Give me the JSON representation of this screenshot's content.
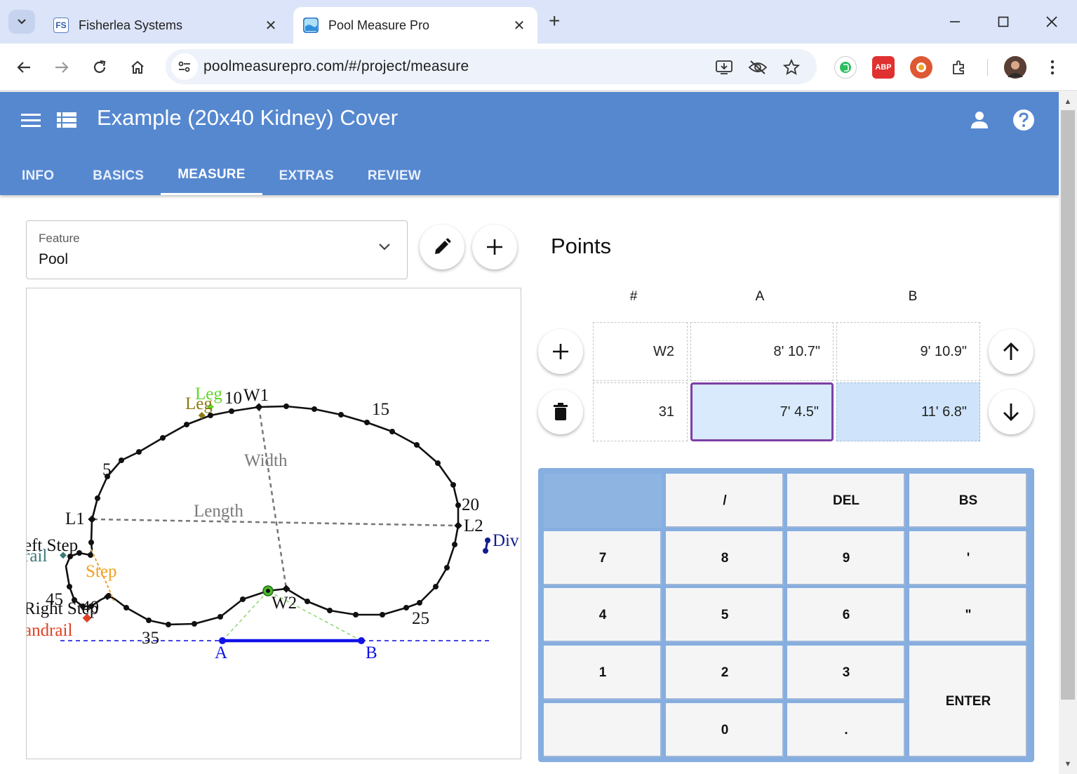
{
  "browser": {
    "tabs": [
      {
        "title": "Fisherlea Systems",
        "favicon": "fisherlea-logo",
        "active": false
      },
      {
        "title": "Pool Measure Pro",
        "favicon": "pool-measure-pro-logo",
        "active": true
      }
    ],
    "url": "poolmeasurepro.com/#/project/measure",
    "extensions": [
      "evernote-icon",
      "adblock-icon",
      "duckduckgo-icon",
      "extensions-puzzle-icon",
      "profile-avatar"
    ]
  },
  "app": {
    "title": "Example (20x40 Kidney) Cover",
    "tabs": [
      "INFO",
      "BASICS",
      "MEASURE",
      "EXTRAS",
      "REVIEW"
    ],
    "active_tab": "MEASURE",
    "header_color": "#5688d0"
  },
  "feature": {
    "label": "Feature",
    "value": "Pool"
  },
  "diagram": {
    "vertex_labels": [
      "W1",
      "W2",
      "L1",
      "L2",
      "A",
      "B"
    ],
    "point_numbers": [
      "5",
      "10",
      "15",
      "20",
      "25",
      "35",
      "40",
      "45"
    ],
    "guide_labels": [
      "Width",
      "Length"
    ],
    "feature_labels": {
      "leg1": "Leg",
      "leg2": "Leg",
      "left_step": "eft Step",
      "rail": "rail",
      "step": "Step",
      "right_step": "Right Step",
      "handrail": "andrail",
      "dive": "Div"
    }
  },
  "points": {
    "title": "Points",
    "columns": [
      "#",
      "A",
      "B"
    ],
    "rows": [
      {
        "num": "W2",
        "a": "8' 10.7\"",
        "b": "9' 10.9\""
      },
      {
        "num": "31",
        "a": "7' 4.5\"",
        "b": "11' 6.8\""
      }
    ]
  },
  "keypad": {
    "keys": {
      "slash": "/",
      "del": "DEL",
      "bs": "BS",
      "k7": "7",
      "k8": "8",
      "k9": "9",
      "feet": "'",
      "k4": "4",
      "k5": "5",
      "k6": "6",
      "inches": "\"",
      "k1": "1",
      "k2": "2",
      "k3": "3",
      "enter": "ENTER",
      "k0": "0",
      "dot": "."
    }
  }
}
